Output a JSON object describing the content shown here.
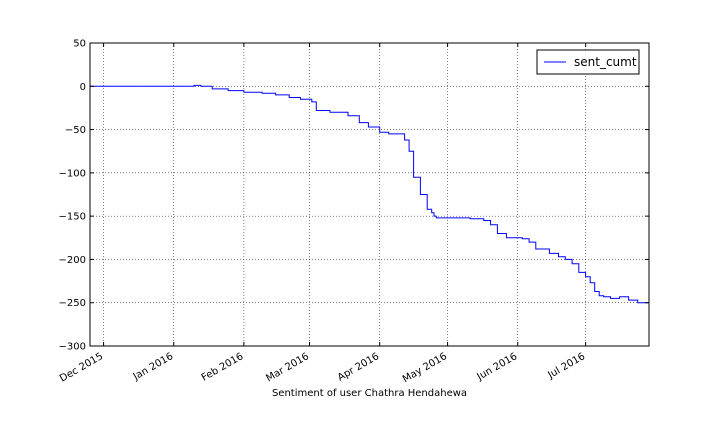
{
  "chart_data": {
    "type": "line",
    "title": "",
    "xlabel": "Sentiment of user Chathra Hendahewa",
    "ylabel": "",
    "xlim": [
      "2015-11-25",
      "2016-07-29"
    ],
    "ylim": [
      -300,
      50
    ],
    "grid": true,
    "legend": "top-right",
    "x_ticks": [
      {
        "label": "Dec 2015",
        "date": "2015-12-01"
      },
      {
        "label": "Jan 2016",
        "date": "2016-01-01"
      },
      {
        "label": "Feb 2016",
        "date": "2016-02-01"
      },
      {
        "label": "Mar 2016",
        "date": "2016-03-01"
      },
      {
        "label": "Apr 2016",
        "date": "2016-04-01"
      },
      {
        "label": "May 2016",
        "date": "2016-05-01"
      },
      {
        "label": "Jun 2016",
        "date": "2016-06-01"
      },
      {
        "label": "Jul 2016",
        "date": "2016-07-01"
      }
    ],
    "y_ticks": [
      {
        "label": "50",
        "value": 50
      },
      {
        "label": "0",
        "value": 0
      },
      {
        "label": "−50",
        "value": -50
      },
      {
        "label": "−100",
        "value": -100
      },
      {
        "label": "−150",
        "value": -150
      },
      {
        "label": "−200",
        "value": -200
      },
      {
        "label": "−250",
        "value": -250
      },
      {
        "label": "−300",
        "value": -300
      }
    ],
    "series": [
      {
        "name": "sent_cumt",
        "color": "#0000ff",
        "x": [
          "2015-11-25",
          "2016-01-05",
          "2016-01-10",
          "2016-01-13",
          "2016-01-18",
          "2016-01-25",
          "2016-02-01",
          "2016-02-09",
          "2016-02-15",
          "2016-02-21",
          "2016-02-26",
          "2016-03-02",
          "2016-03-04",
          "2016-03-10",
          "2016-03-18",
          "2016-03-23",
          "2016-03-27",
          "2016-04-01",
          "2016-04-05",
          "2016-04-10",
          "2016-04-12",
          "2016-04-14",
          "2016-04-16",
          "2016-04-19",
          "2016-04-22",
          "2016-04-24",
          "2016-04-25",
          "2016-04-26",
          "2016-05-01",
          "2016-05-11",
          "2016-05-17",
          "2016-05-20",
          "2016-05-23",
          "2016-05-27",
          "2016-06-03",
          "2016-06-06",
          "2016-06-09",
          "2016-06-15",
          "2016-06-19",
          "2016-06-22",
          "2016-06-25",
          "2016-06-28",
          "2016-07-01",
          "2016-07-03",
          "2016-07-05",
          "2016-07-07",
          "2016-07-09",
          "2016-07-12",
          "2016-07-16",
          "2016-07-20",
          "2016-07-24",
          "2016-07-29"
        ],
        "values": [
          0,
          0,
          1,
          0,
          -3,
          -5,
          -7,
          -8,
          -10,
          -13,
          -15,
          -18,
          -28,
          -30,
          -34,
          -42,
          -47,
          -53,
          -55,
          -55,
          -62,
          -75,
          -105,
          -125,
          -142,
          -146,
          -150,
          -152,
          -152,
          -153,
          -155,
          -160,
          -170,
          -175,
          -176,
          -180,
          -188,
          -193,
          -197,
          -200,
          -205,
          -215,
          -220,
          -227,
          -237,
          -242,
          -243,
          -245,
          -243,
          -247,
          -250,
          -248
        ]
      }
    ]
  }
}
